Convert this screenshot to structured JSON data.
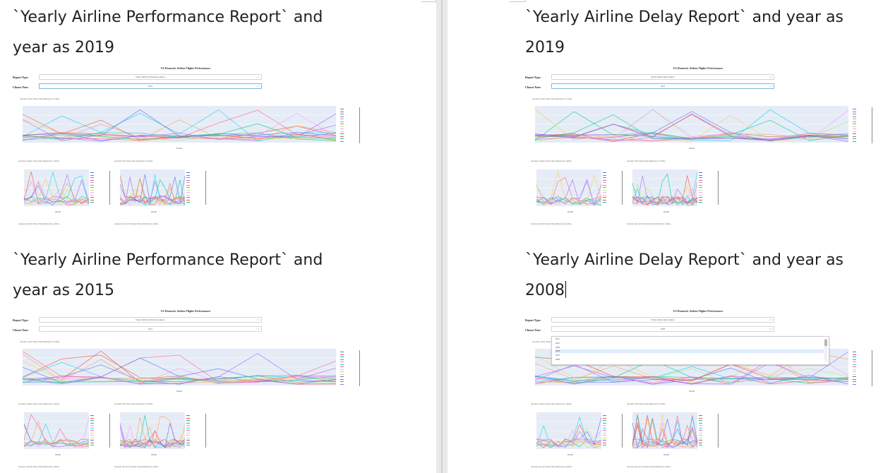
{
  "captions": [
    {
      "text": "`Yearly Airline Performance Report` and\nyear as 2019"
    },
    {
      "text": "`Yearly Airline Delay Report` and year as\n2019"
    },
    {
      "text": "`Yearly Airline Performance Report` and\nyear as 2015"
    },
    {
      "text": "`Yearly Airline Delay Report` and year as\n2008"
    }
  ],
  "dashboards": [
    {
      "title": "US Domestic Airline Flights Performance",
      "report_type_label": "Report Type:",
      "choose_year_label": "Choose Year:",
      "report_type_value": "Yearly Airline Performance Report",
      "year_value": "2019",
      "chart_captions": [
        "Average carrier delay time (minutes) by airline",
        "Average weather delay time (minutes) by airline",
        "Average NAS delay time (minutes) by airline",
        "Average security delay time (minutes) by airline",
        "Average late aircraft delay time (minutes) by airline"
      ],
      "legend_title": "Reporting Airline",
      "x_label": "Month"
    },
    {
      "title": "US Domestic Airline Flights Performance",
      "report_type_label": "Report Type:",
      "choose_year_label": "Choose Year:",
      "report_type_value": "Yearly Airline Delay Report",
      "year_value": "2019",
      "chart_captions": [
        "Average carrier delay time (minutes) by airline",
        "Average weather delay time (minutes) by airline",
        "Average NAS delay time (minutes) by airline",
        "Average security delay time (minutes) by airline",
        "Average late aircraft delay time (minutes) by airline"
      ],
      "legend_title": "Reporting Airline",
      "x_label": "Month"
    },
    {
      "title": "US Domestic Airline Flights Performance",
      "report_type_label": "Report Type:",
      "choose_year_label": "Choose Year:",
      "report_type_value": "Yearly Airline Performance Report",
      "year_value": "2015",
      "chart_captions": [
        "Average carrier delay time (minutes) by airline",
        "Average weather delay time (minutes) by airline",
        "Average NAS delay time (minutes) by airline",
        "Average security delay time (minutes) by airline",
        "Average late aircraft delay time (minutes) by airline"
      ],
      "legend_title": "Reporting Airline",
      "x_label": "Month"
    },
    {
      "title": "US Domestic Airline Flights Performance",
      "report_type_label": "Report Type:",
      "choose_year_label": "Choose Year:",
      "report_type_value": "Yearly Airline Delay Report",
      "year_value": "2008",
      "chart_captions": [
        "Average carrier delay time (minutes) by airline",
        "Average weather delay time (minutes) by airline",
        "Average NAS delay time (minutes) by airline",
        "Average security delay time (minutes) by airline",
        "Average late aircraft delay time (minutes) by airline"
      ],
      "legend_title": "Reporting Airline",
      "x_label": "Month",
      "year_dropdown": {
        "options": [
          "2011",
          "2010",
          "2009",
          "2008",
          "2007",
          "2006"
        ],
        "selected": "2008"
      }
    }
  ],
  "series_colors": [
    "#636efa",
    "#ef553b",
    "#00cc96",
    "#ab63fa",
    "#ffa15a",
    "#19d3f3",
    "#ff6692",
    "#b6e880",
    "#ff97ff",
    "#fecb52"
  ]
}
